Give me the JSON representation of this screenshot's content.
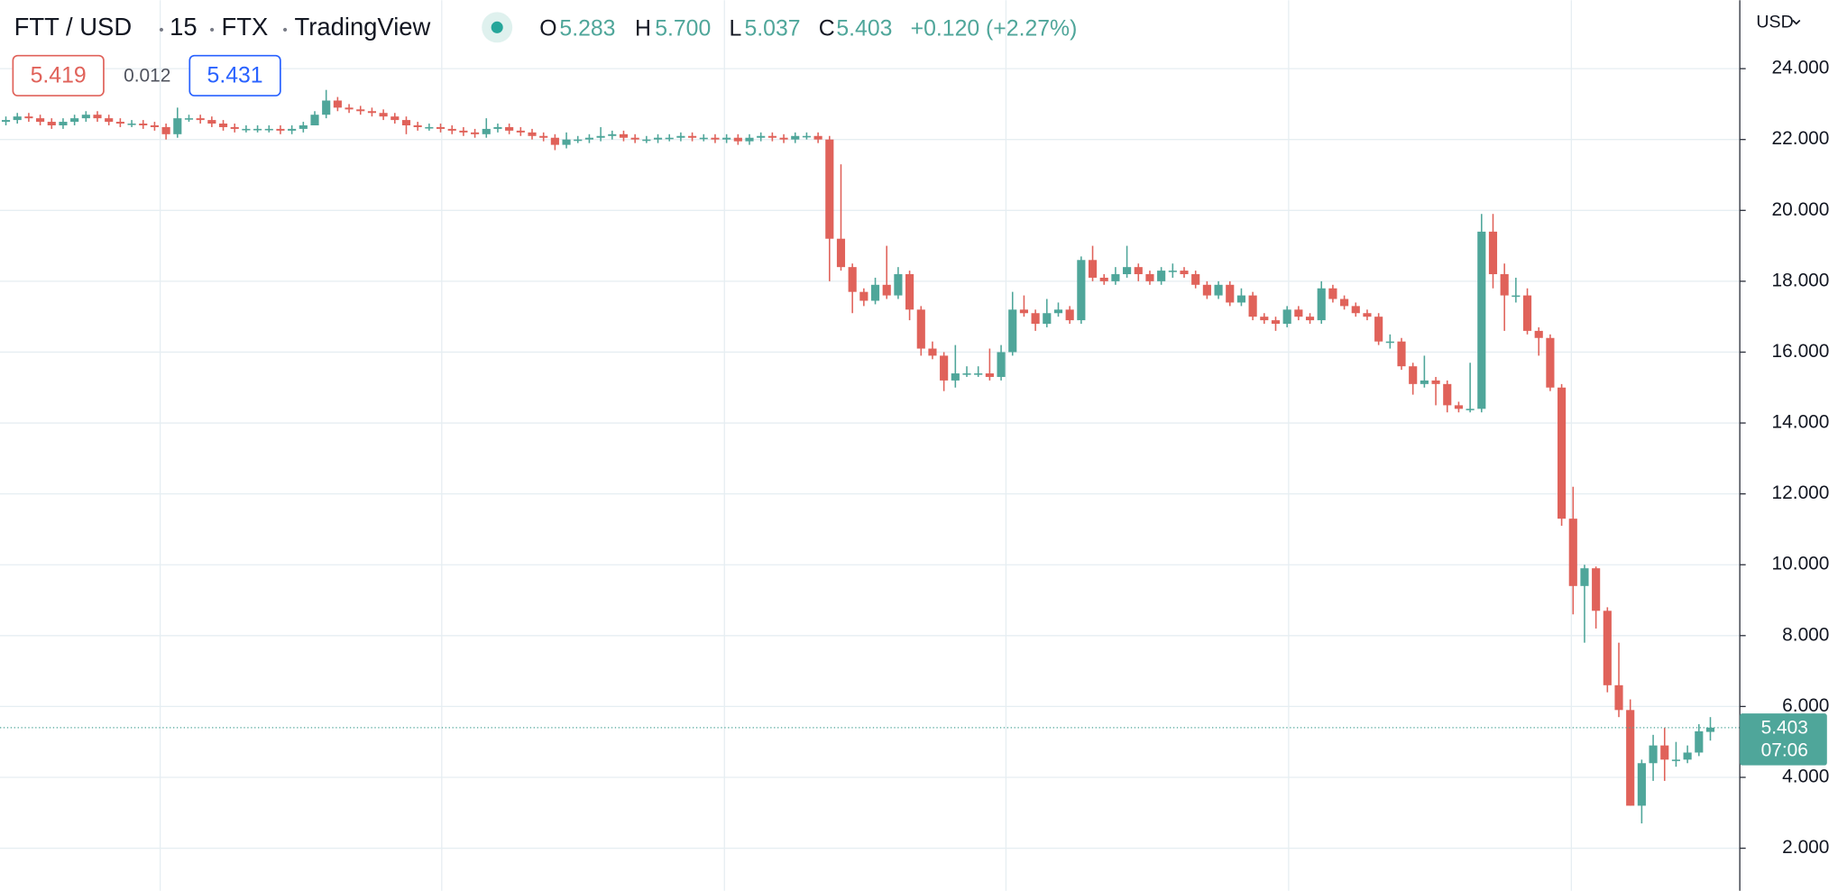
{
  "chart_data": {
    "type": "candlestick",
    "header": {
      "symbol": "FTT / USD",
      "interval": "15",
      "exchange": "FTX",
      "source": "TradingView",
      "o_label": "O",
      "o_value": "5.283",
      "h_label": "H",
      "h_value": "5.700",
      "l_label": "L",
      "l_value": "5.037",
      "c_label": "C",
      "c_value": "5.403",
      "change": "+0.120 (+2.27%)",
      "bid": "5.419",
      "spread": "0.012",
      "ask": "5.431"
    },
    "currency": "USD",
    "countdown": "07:06",
    "up_color": "#4fa69a",
    "down_color": "#e0625a",
    "grid": true,
    "ylim": [
      0.8,
      25.93
    ],
    "yticks": [
      {
        "value": 2,
        "label": "2.000"
      },
      {
        "value": 4,
        "label": "4.000"
      },
      {
        "value": 6,
        "label": "6.000"
      },
      {
        "value": 8,
        "label": "8.000"
      },
      {
        "value": 10,
        "label": "10.000"
      },
      {
        "value": 12,
        "label": "12.000"
      },
      {
        "value": 14,
        "label": "14.000"
      },
      {
        "value": 16,
        "label": "16.000"
      },
      {
        "value": 18,
        "label": "18.000"
      },
      {
        "value": 20,
        "label": "20.000"
      },
      {
        "value": 22,
        "label": "22.000"
      },
      {
        "value": 24,
        "label": "24.000"
      }
    ],
    "last_price_label": "5.403",
    "open": [
      22.5,
      22.55,
      22.65,
      22.6,
      22.5,
      22.4,
      22.5,
      22.6,
      22.7,
      22.6,
      22.5,
      22.45,
      22.45,
      22.4,
      22.35,
      22.15,
      22.6,
      22.6,
      22.55,
      22.45,
      22.35,
      22.3,
      22.3,
      22.3,
      22.3,
      22.25,
      22.3,
      22.4,
      22.7,
      23.1,
      22.9,
      22.85,
      22.8,
      22.75,
      22.65,
      22.55,
      22.4,
      22.35,
      22.35,
      22.3,
      22.25,
      22.2,
      22.15,
      22.3,
      22.35,
      22.25,
      22.2,
      22.1,
      22.05,
      21.85,
      22.0,
      22.0,
      22.05,
      22.1,
      22.15,
      22.05,
      22.0,
      22.0,
      22.05,
      22.05,
      22.1,
      22.05,
      22.05,
      22.0,
      22.05,
      21.95,
      22.05,
      22.1,
      22.05,
      22.0,
      22.1,
      22.1,
      22.0,
      19.2,
      18.4,
      17.7,
      17.45,
      17.9,
      17.6,
      18.2,
      17.2,
      16.1,
      15.9,
      15.2,
      15.4,
      15.4,
      15.4,
      15.3,
      16.0,
      17.2,
      17.1,
      16.8,
      17.1,
      17.2,
      16.9,
      18.6,
      18.1,
      18.0,
      18.2,
      18.4,
      18.2,
      18.0,
      18.3,
      18.3,
      18.2,
      17.9,
      17.6,
      17.9,
      17.4,
      17.6,
      17.0,
      16.9,
      16.8,
      17.2,
      17.0,
      16.9,
      17.8,
      17.5,
      17.3,
      17.1,
      17.0,
      16.3,
      16.3,
      15.6,
      15.1,
      15.2,
      15.1,
      14.5,
      14.4,
      14.4,
      19.4,
      18.2,
      17.6,
      17.6,
      16.6,
      16.4,
      15.0,
      11.3,
      9.4,
      9.9,
      8.7,
      6.6,
      5.9,
      3.2,
      4.4,
      4.9,
      4.5,
      4.5,
      4.7,
      5.283
    ],
    "high": [
      22.65,
      22.75,
      22.75,
      22.7,
      22.6,
      22.6,
      22.7,
      22.8,
      22.8,
      22.7,
      22.6,
      22.55,
      22.55,
      22.5,
      22.45,
      22.9,
      22.7,
      22.7,
      22.65,
      22.55,
      22.45,
      22.4,
      22.4,
      22.4,
      22.4,
      22.4,
      22.5,
      22.8,
      23.4,
      23.2,
      23.0,
      22.95,
      22.9,
      22.85,
      22.75,
      22.65,
      22.5,
      22.45,
      22.45,
      22.4,
      22.35,
      22.3,
      22.6,
      22.45,
      22.45,
      22.35,
      22.3,
      22.2,
      22.15,
      22.2,
      22.1,
      22.15,
      22.35,
      22.25,
      22.25,
      22.15,
      22.1,
      22.15,
      22.15,
      22.2,
      22.2,
      22.15,
      22.15,
      22.15,
      22.15,
      22.15,
      22.2,
      22.2,
      22.15,
      22.2,
      22.2,
      22.2,
      22.1,
      21.3,
      18.5,
      17.8,
      18.1,
      19.0,
      18.4,
      18.3,
      17.3,
      16.3,
      16.0,
      16.2,
      15.6,
      15.6,
      16.1,
      16.2,
      17.7,
      17.6,
      17.2,
      17.5,
      17.4,
      17.3,
      18.7,
      19.0,
      18.2,
      18.4,
      19.0,
      18.5,
      18.3,
      18.4,
      18.5,
      18.4,
      18.3,
      18.0,
      18.0,
      18.0,
      17.8,
      17.7,
      17.1,
      17.0,
      17.3,
      17.3,
      17.1,
      18.0,
      17.9,
      17.6,
      17.4,
      17.2,
      17.1,
      16.5,
      16.4,
      15.7,
      15.9,
      15.3,
      15.2,
      14.6,
      15.7,
      19.9,
      19.9,
      18.5,
      18.1,
      17.8,
      16.7,
      16.5,
      15.1,
      12.2,
      10.0,
      9.95,
      8.8,
      7.8,
      6.2,
      4.5,
      5.2,
      5.4,
      5.0,
      4.9,
      5.5,
      5.7
    ],
    "low": [
      22.4,
      22.45,
      22.5,
      22.4,
      22.3,
      22.3,
      22.4,
      22.5,
      22.5,
      22.4,
      22.35,
      22.35,
      22.3,
      22.25,
      22.0,
      22.05,
      22.5,
      22.45,
      22.35,
      22.25,
      22.2,
      22.2,
      22.2,
      22.2,
      22.15,
      22.15,
      22.2,
      22.4,
      22.6,
      22.8,
      22.75,
      22.7,
      22.65,
      22.55,
      22.45,
      22.15,
      22.25,
      22.25,
      22.2,
      22.15,
      22.1,
      22.05,
      22.05,
      22.2,
      22.15,
      22.1,
      22.0,
      21.95,
      21.7,
      21.75,
      21.9,
      21.9,
      21.95,
      22.0,
      21.95,
      21.9,
      21.9,
      21.9,
      21.95,
      21.95,
      21.95,
      21.95,
      21.9,
      21.9,
      21.85,
      21.85,
      21.95,
      21.95,
      21.9,
      21.9,
      22.0,
      21.9,
      18.0,
      18.3,
      17.1,
      17.3,
      17.35,
      17.5,
      17.5,
      16.9,
      15.9,
      15.8,
      14.9,
      15.0,
      15.3,
      15.3,
      15.2,
      15.2,
      15.9,
      17.0,
      16.6,
      16.7,
      17.0,
      16.8,
      16.8,
      18.0,
      17.9,
      17.9,
      18.1,
      18.0,
      17.9,
      17.9,
      18.1,
      18.1,
      17.8,
      17.5,
      17.5,
      17.3,
      17.3,
      16.9,
      16.8,
      16.6,
      16.7,
      16.9,
      16.8,
      16.8,
      17.4,
      17.2,
      17.0,
      16.9,
      16.2,
      16.1,
      15.5,
      14.8,
      15.0,
      14.5,
      14.3,
      14.3,
      14.3,
      14.3,
      17.8,
      16.6,
      17.4,
      16.5,
      15.9,
      14.9,
      11.1,
      8.6,
      7.8,
      8.2,
      6.4,
      5.7,
      3.2,
      2.7,
      3.9,
      3.9,
      4.3,
      4.4,
      4.6,
      5.037
    ],
    "close": [
      22.55,
      22.65,
      22.6,
      22.5,
      22.4,
      22.5,
      22.6,
      22.7,
      22.6,
      22.5,
      22.45,
      22.45,
      22.4,
      22.35,
      22.15,
      22.6,
      22.6,
      22.55,
      22.45,
      22.35,
      22.3,
      22.3,
      22.3,
      22.3,
      22.25,
      22.3,
      22.4,
      22.7,
      23.1,
      22.9,
      22.85,
      22.8,
      22.75,
      22.65,
      22.55,
      22.4,
      22.35,
      22.35,
      22.3,
      22.25,
      22.2,
      22.15,
      22.3,
      22.35,
      22.25,
      22.2,
      22.1,
      22.05,
      21.85,
      22.0,
      22.0,
      22.05,
      22.1,
      22.15,
      22.05,
      22.0,
      22.0,
      22.05,
      22.05,
      22.1,
      22.05,
      22.05,
      22.0,
      22.05,
      21.95,
      22.05,
      22.1,
      22.05,
      22.0,
      22.1,
      22.1,
      22.0,
      19.2,
      18.4,
      17.7,
      17.45,
      17.9,
      17.6,
      18.2,
      17.2,
      16.1,
      15.9,
      15.2,
      15.4,
      15.4,
      15.4,
      15.3,
      16.0,
      17.2,
      17.1,
      16.8,
      17.1,
      17.2,
      16.9,
      18.6,
      18.1,
      18.0,
      18.2,
      18.4,
      18.2,
      18.0,
      18.3,
      18.3,
      18.2,
      17.9,
      17.6,
      17.9,
      17.4,
      17.6,
      17.0,
      16.9,
      16.8,
      17.2,
      17.0,
      16.9,
      17.8,
      17.5,
      17.3,
      17.1,
      17.0,
      16.3,
      16.3,
      15.6,
      15.1,
      15.2,
      15.1,
      14.5,
      14.4,
      14.4,
      19.4,
      18.2,
      17.6,
      17.6,
      16.6,
      16.4,
      15.0,
      11.3,
      9.4,
      9.9,
      8.7,
      6.6,
      5.9,
      3.2,
      4.4,
      4.9,
      4.5,
      4.5,
      4.7,
      5.3,
      5.403
    ]
  }
}
